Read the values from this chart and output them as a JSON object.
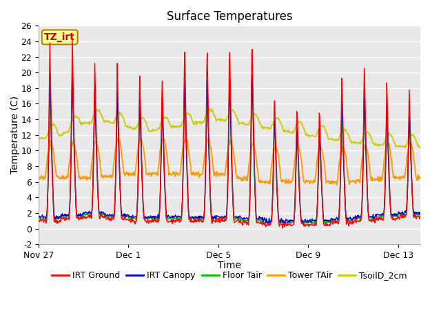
{
  "title": "Surface Temperatures",
  "xlabel": "Time",
  "ylabel": "Temperature (C)",
  "ylim": [
    -2,
    26
  ],
  "yticks": [
    -2,
    0,
    2,
    4,
    6,
    8,
    10,
    12,
    14,
    16,
    18,
    20,
    22,
    24,
    26
  ],
  "xtick_labels": [
    "Nov 27",
    "Dec 1",
    "Dec 5",
    "Dec 9",
    "Dec 13"
  ],
  "xtick_positions": [
    0,
    4,
    8,
    12,
    16
  ],
  "legend_entries": [
    "IRT Ground",
    "IRT Canopy",
    "Floor Tair",
    "Tower TAir",
    "TsoilD_2cm"
  ],
  "legend_colors": [
    "#ff0000",
    "#0000cc",
    "#00bb00",
    "#ff9900",
    "#cccc00"
  ],
  "line_colors": [
    "#ff0000",
    "#0000cc",
    "#00bb00",
    "#ff9900",
    "#cccc00"
  ],
  "annotation_text": "TZ_irt",
  "annotation_box_color": "#ffff99",
  "annotation_box_edge": "#aa8800",
  "annotation_text_color": "#cc0000",
  "fig_bg_color": "#ffffff",
  "plot_bg_color": "#e8e8e8",
  "grid_color": "#ffffff",
  "title_fontsize": 12,
  "axis_fontsize": 10,
  "tick_fontsize": 9,
  "legend_fontsize": 9,
  "total_days": 17,
  "n_per_day": 48
}
